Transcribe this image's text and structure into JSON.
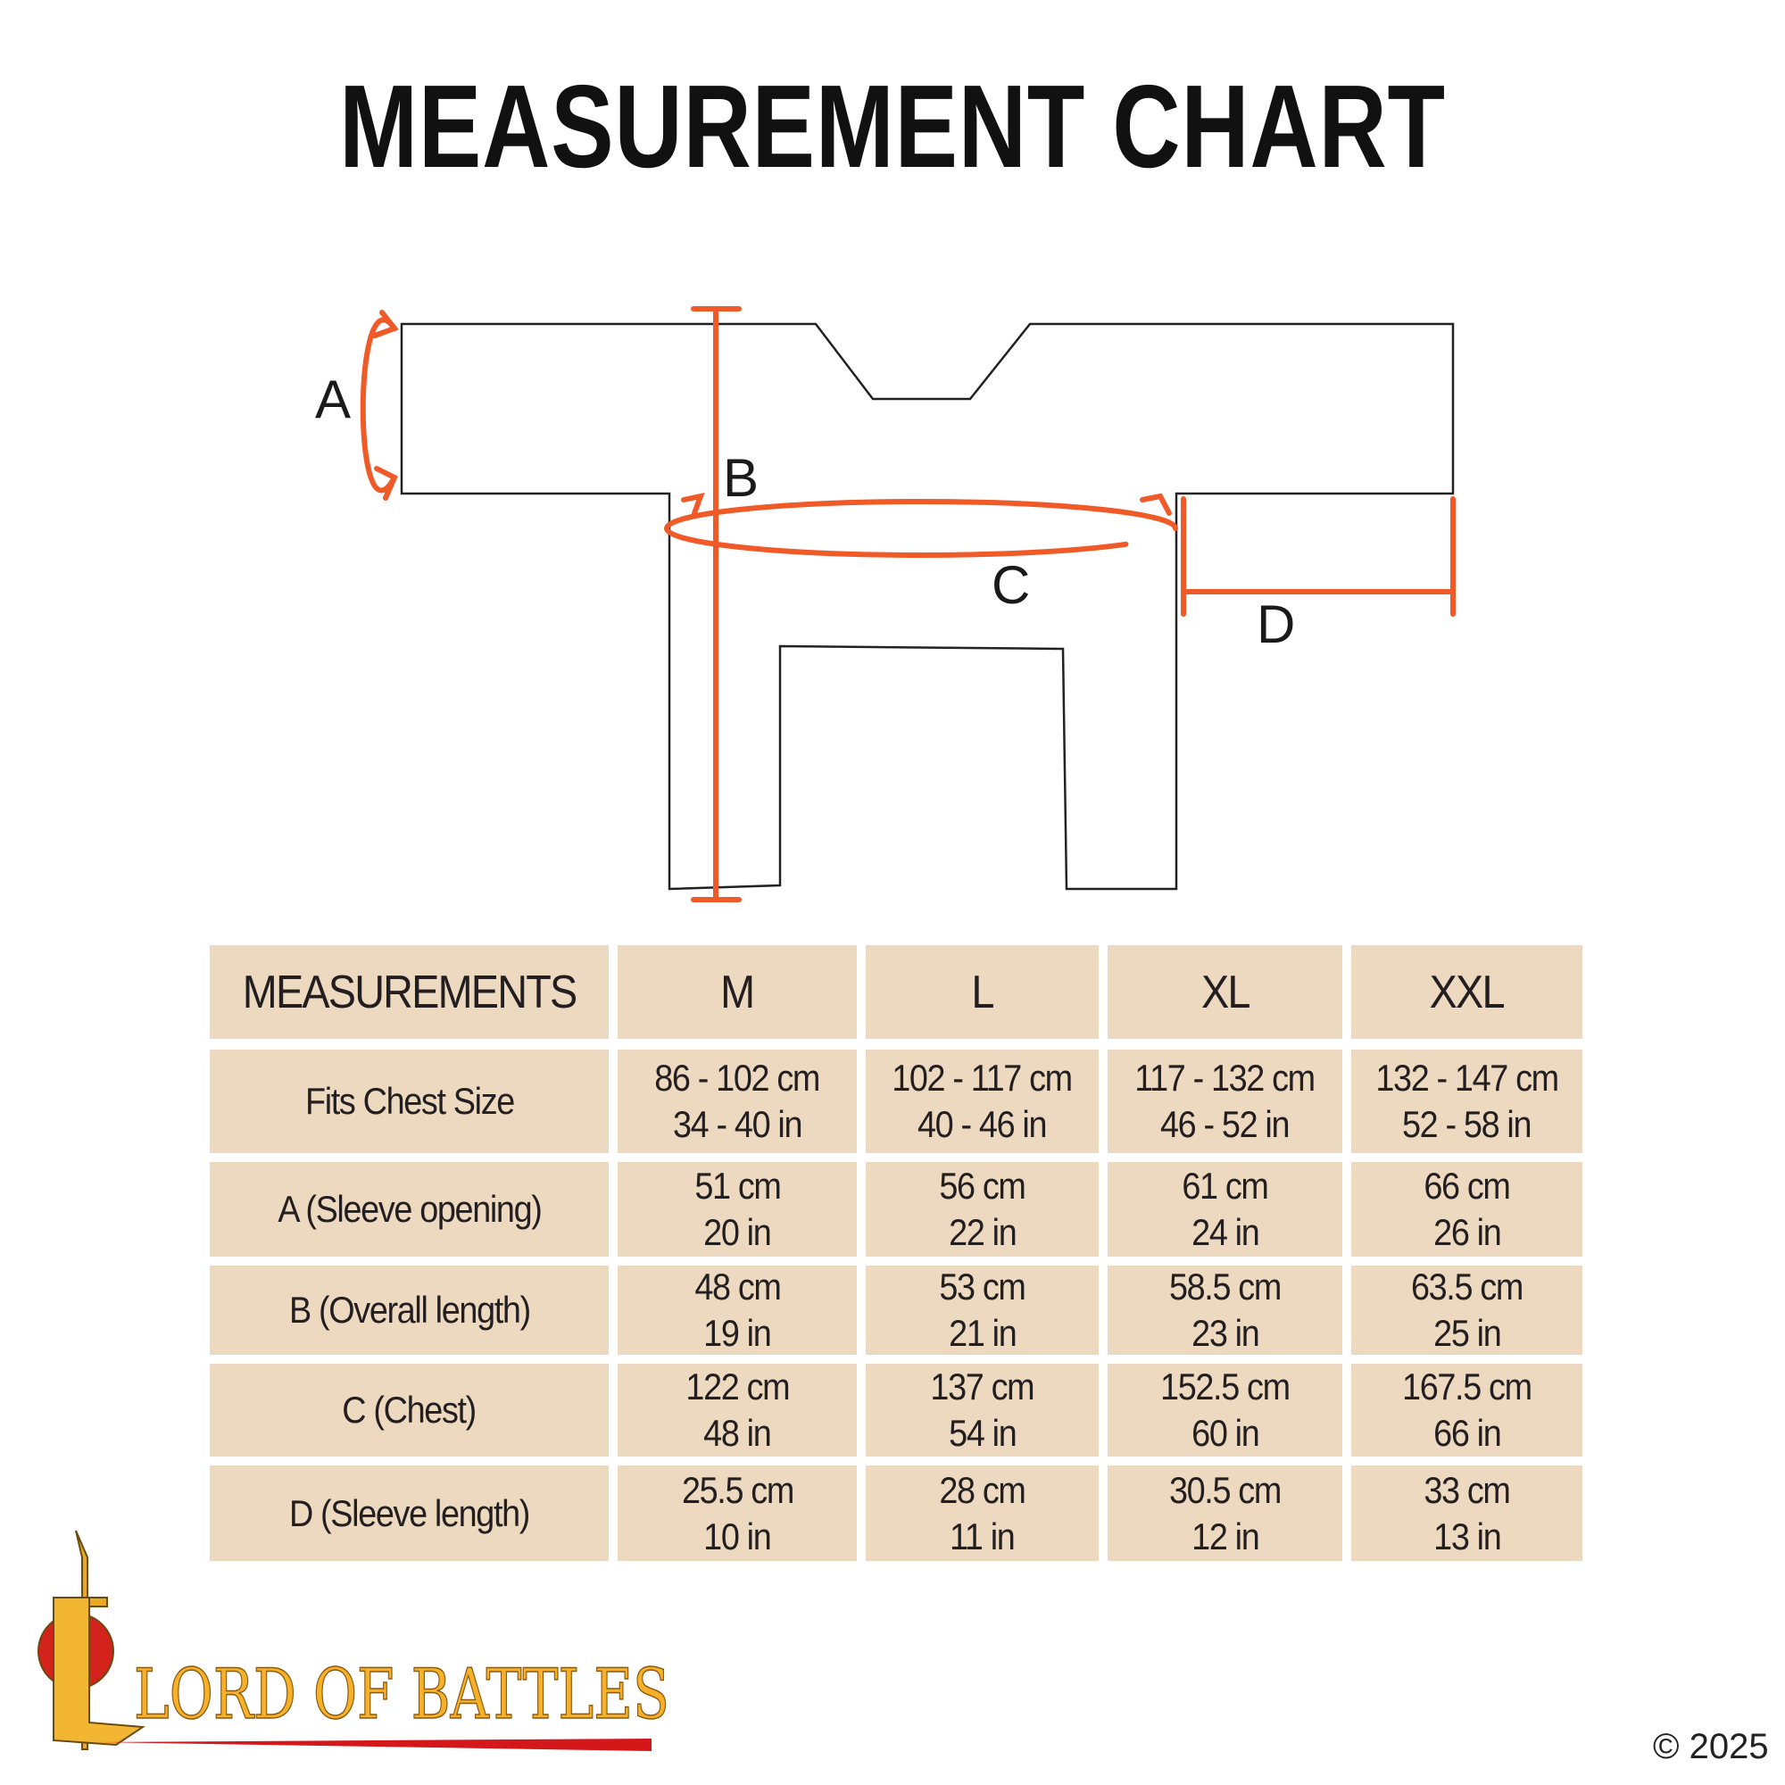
{
  "title": "MEASUREMENT CHART",
  "colors": {
    "accent": "#f05a28",
    "cell_bg": "#ecd9c0",
    "outline": "#222222"
  },
  "diagram": {
    "labels": {
      "a": "A",
      "b": "B",
      "c": "C",
      "d": "D"
    }
  },
  "table": {
    "headers": [
      "MEASUREMENTS",
      "M",
      "L",
      "XL",
      "XXL"
    ],
    "rows": [
      {
        "label": "Fits Chest Size",
        "values": [
          [
            "86 - 102 cm",
            "34 - 40 in"
          ],
          [
            "102 - 117 cm",
            "40 - 46 in"
          ],
          [
            "117 - 132 cm",
            "46 - 52 in"
          ],
          [
            "132 - 147 cm",
            "52 - 58 in"
          ]
        ]
      },
      {
        "label": "A (Sleeve opening)",
        "values": [
          [
            "51 cm",
            "20 in"
          ],
          [
            "56 cm",
            "22 in"
          ],
          [
            "61 cm",
            "24 in"
          ],
          [
            "66 cm",
            "26 in"
          ]
        ]
      },
      {
        "label": "B (Overall length)",
        "values": [
          [
            "48 cm",
            "19 in"
          ],
          [
            "53 cm",
            "21 in"
          ],
          [
            "58.5 cm",
            "23 in"
          ],
          [
            "63.5 cm",
            "25 in"
          ]
        ]
      },
      {
        "label": "C (Chest)",
        "values": [
          [
            "122 cm",
            "48 in"
          ],
          [
            "137 cm",
            "54 in"
          ],
          [
            "152.5 cm",
            "60 in"
          ],
          [
            "167.5 cm",
            "66 in"
          ]
        ]
      },
      {
        "label": "D (Sleeve length)",
        "values": [
          [
            "25.5 cm",
            "10 in"
          ],
          [
            "28 cm",
            "11 in"
          ],
          [
            "30.5 cm",
            "12 in"
          ],
          [
            "33 cm",
            "13 in"
          ]
        ]
      }
    ]
  },
  "logo": {
    "text": "LORD OF BATTLES"
  },
  "copyright": "© 2025"
}
